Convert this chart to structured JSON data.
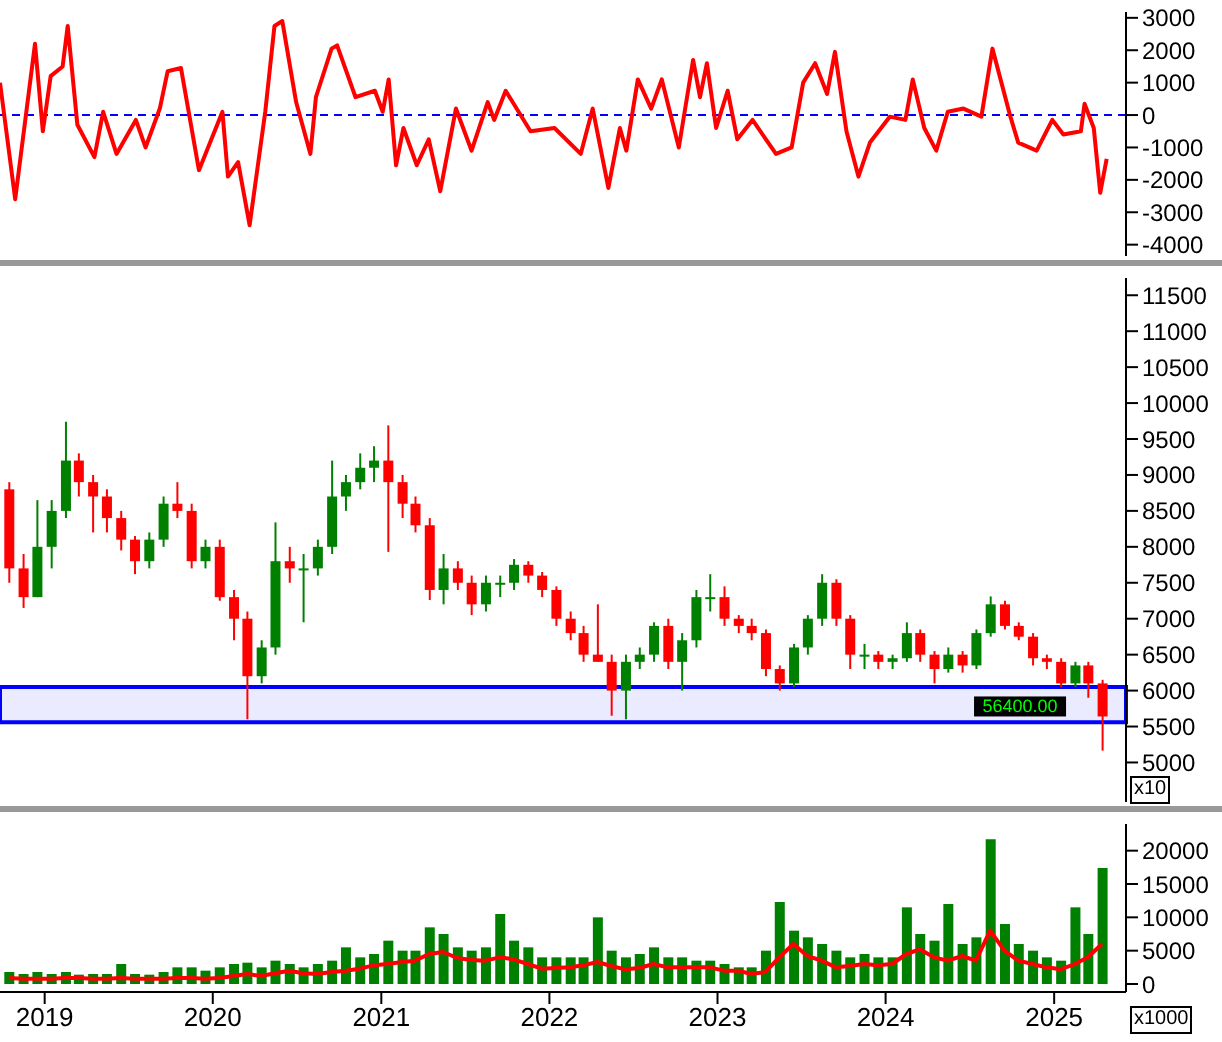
{
  "chart_data": [
    {
      "type": "line",
      "x": [
        "2018-09-26",
        "2018-10-29",
        "2018-12-11",
        "2018-12-28",
        "2019-01-14",
        "2019-02-09",
        "2019-02-20",
        "2019-03-13",
        "2019-04-19",
        "2019-05-08",
        "2019-06-06",
        "2019-07-18",
        "2019-08-08",
        "2019-09-08",
        "2019-09-25",
        "2019-10-24",
        "2019-12-02",
        "2020-01-22",
        "2020-02-03",
        "2020-02-25",
        "2020-03-21",
        "2020-04-24",
        "2020-05-14",
        "2020-05-31",
        "2020-06-30",
        "2020-07-31",
        "2020-08-12",
        "2020-09-15",
        "2020-09-27",
        "2020-11-06",
        "2020-12-18",
        "2021-01-04",
        "2021-01-17",
        "2021-02-02",
        "2021-02-18",
        "2021-03-19",
        "2021-04-14",
        "2021-05-09",
        "2021-06-12",
        "2021-07-16",
        "2021-08-20",
        "2021-09-03",
        "2021-09-28",
        "2021-11-21",
        "2022-01-12",
        "2022-03-10",
        "2022-04-05",
        "2022-05-09",
        "2022-06-03",
        "2022-06-17",
        "2022-07-12",
        "2022-08-10",
        "2022-09-02",
        "2022-10-09",
        "2022-11-09",
        "2022-11-24",
        "2022-12-09",
        "2022-12-29",
        "2023-01-23",
        "2023-02-13",
        "2023-03-18",
        "2023-05-08",
        "2023-06-11",
        "2023-07-06",
        "2023-08-01",
        "2023-08-27",
        "2023-09-13",
        "2023-10-08",
        "2023-11-03",
        "2023-11-28",
        "2024-01-10",
        "2024-02-13",
        "2024-02-29",
        "2024-03-25",
        "2024-04-20",
        "2024-05-15",
        "2024-06-18",
        "2024-07-27",
        "2024-08-20",
        "2024-09-28",
        "2024-10-15",
        "2024-11-24",
        "2024-12-28",
        "2025-01-21",
        "2025-02-28",
        "2025-03-08",
        "2025-03-28",
        "2025-04-11",
        "2025-04-25"
      ],
      "series": [
        {
          "color": "#ff0000",
          "values": [
            1000,
            -2600,
            2200,
            -500,
            1200,
            1500,
            2750,
            -300,
            -1300,
            100,
            -1200,
            -150,
            -1000,
            200,
            1350,
            1450,
            -1700,
            100,
            -1900,
            -1450,
            -3400,
            100,
            2750,
            2900,
            400,
            -1200,
            550,
            2050,
            2150,
            550,
            750,
            100,
            1100,
            -1550,
            -400,
            -1550,
            -750,
            -2350,
            200,
            -1100,
            400,
            -150,
            750,
            -500,
            -400,
            -1200,
            200,
            -2250,
            -400,
            -1100,
            1100,
            200,
            1100,
            -1000,
            1700,
            550,
            1600,
            -400,
            750,
            -750,
            -150,
            -1200,
            -1000,
            1000,
            1600,
            650,
            1950,
            -500,
            -1900,
            -850,
            -50,
            -150,
            1100,
            -400,
            -1100,
            100,
            200,
            -50,
            2050,
            -50,
            -850,
            -1100,
            -150,
            -600,
            -500,
            350,
            -400,
            -2400,
            -1350
          ]
        }
      ],
      "xlim": [
        "2018-09-26",
        "2025-06-06"
      ],
      "ylim": [
        -4350,
        3180
      ],
      "yticks": [
        -4000,
        -3000,
        -2000,
        -1000,
        0,
        1000,
        2000,
        3000
      ],
      "ref_lines": [
        {
          "axis": "y",
          "value": 0,
          "color": "#0000ff",
          "line_style": "dashed"
        }
      ],
      "tick_labels": "y"
    },
    {
      "type": "candlestick",
      "x": [
        "2018-10-15",
        "2018-11-15",
        "2018-12-15",
        "2019-01-15",
        "2019-02-15",
        "2019-03-15",
        "2019-04-15",
        "2019-05-15",
        "2019-06-15",
        "2019-07-15",
        "2019-08-15",
        "2019-09-15",
        "2019-10-15",
        "2019-11-15",
        "2019-12-15",
        "2020-01-15",
        "2020-02-15",
        "2020-03-15",
        "2020-04-15",
        "2020-05-15",
        "2020-06-15",
        "2020-07-15",
        "2020-08-15",
        "2020-09-15",
        "2020-10-15",
        "2020-11-15",
        "2020-12-15",
        "2021-01-15",
        "2021-02-15",
        "2021-03-15",
        "2021-04-15",
        "2021-05-15",
        "2021-06-15",
        "2021-07-15",
        "2021-08-15",
        "2021-09-15",
        "2021-10-15",
        "2021-11-15",
        "2021-12-15",
        "2022-01-15",
        "2022-02-15",
        "2022-03-15",
        "2022-04-15",
        "2022-05-15",
        "2022-06-15",
        "2022-07-15",
        "2022-08-15",
        "2022-09-15",
        "2022-10-15",
        "2022-11-15",
        "2022-12-15",
        "2023-01-15",
        "2023-02-15",
        "2023-03-15",
        "2023-04-15",
        "2023-05-15",
        "2023-06-15",
        "2023-07-15",
        "2023-08-15",
        "2023-09-15",
        "2023-10-15",
        "2023-11-15",
        "2023-12-15",
        "2024-01-15",
        "2024-02-15",
        "2024-03-15",
        "2024-04-15",
        "2024-05-15",
        "2024-06-15",
        "2024-07-15",
        "2024-08-15",
        "2024-09-15",
        "2024-10-15",
        "2024-11-15",
        "2024-12-15",
        "2025-01-15",
        "2025-02-15",
        "2025-03-15",
        "2025-04-15"
      ],
      "ohlc": [
        [
          8800,
          8900,
          7500,
          7700
        ],
        [
          7700,
          7900,
          7150,
          7300
        ],
        [
          7300,
          8650,
          7300,
          8000
        ],
        [
          8000,
          8650,
          7700,
          8500
        ],
        [
          8500,
          9740,
          8400,
          9200
        ],
        [
          9200,
          9300,
          8700,
          8900
        ],
        [
          8900,
          9000,
          8200,
          8700
        ],
        [
          8700,
          8800,
          8200,
          8400
        ],
        [
          8400,
          8500,
          7950,
          8100
        ],
        [
          8100,
          8150,
          7620,
          7800
        ],
        [
          7800,
          8200,
          7700,
          8100
        ],
        [
          8100,
          8700,
          8000,
          8600
        ],
        [
          8600,
          8900,
          8400,
          8500
        ],
        [
          8500,
          8600,
          7700,
          7800
        ],
        [
          7800,
          8100,
          7700,
          8000
        ],
        [
          8000,
          8100,
          7250,
          7300
        ],
        [
          7300,
          7400,
          6700,
          7000
        ],
        [
          7000,
          7100,
          5600,
          6200
        ],
        [
          6200,
          6700,
          6100,
          6600
        ],
        [
          6600,
          8340,
          6500,
          7800
        ],
        [
          7800,
          8000,
          7500,
          7700
        ],
        [
          7700,
          7900,
          6950,
          7700
        ],
        [
          7700,
          8100,
          7600,
          8000
        ],
        [
          8000,
          9200,
          7900,
          8700
        ],
        [
          8700,
          9000,
          8500,
          8900
        ],
        [
          8900,
          9300,
          8800,
          9100
        ],
        [
          9100,
          9400,
          8900,
          9200
        ],
        [
          9200,
          9690,
          7930,
          8900
        ],
        [
          8900,
          9000,
          8400,
          8600
        ],
        [
          8600,
          8700,
          8200,
          8300
        ],
        [
          8300,
          8400,
          7260,
          7400
        ],
        [
          7400,
          7900,
          7200,
          7700
        ],
        [
          7700,
          7800,
          7400,
          7500
        ],
        [
          7500,
          7600,
          7050,
          7200
        ],
        [
          7200,
          7600,
          7100,
          7500
        ],
        [
          7500,
          7600,
          7300,
          7500
        ],
        [
          7500,
          7830,
          7400,
          7750
        ],
        [
          7750,
          7800,
          7500,
          7600
        ],
        [
          7600,
          7650,
          7300,
          7400
        ],
        [
          7400,
          7450,
          6900,
          7000
        ],
        [
          7000,
          7100,
          6700,
          6800
        ],
        [
          6800,
          6900,
          6400,
          6500
        ],
        [
          6500,
          7200,
          6400,
          6400
        ],
        [
          6400,
          6500,
          5650,
          6000
        ],
        [
          6000,
          6500,
          5600,
          6400
        ],
        [
          6400,
          6600,
          6300,
          6500
        ],
        [
          6500,
          6950,
          6400,
          6900
        ],
        [
          6900,
          7000,
          6300,
          6400
        ],
        [
          6400,
          6800,
          6000,
          6700
        ],
        [
          6700,
          7400,
          6600,
          7300
        ],
        [
          7300,
          7620,
          7100,
          7300
        ],
        [
          7300,
          7450,
          6900,
          7000
        ],
        [
          7000,
          7050,
          6800,
          6900
        ],
        [
          6900,
          7000,
          6700,
          6800
        ],
        [
          6800,
          6850,
          6200,
          6300
        ],
        [
          6300,
          6350,
          6000,
          6100
        ],
        [
          6100,
          6650,
          6050,
          6600
        ],
        [
          6600,
          7050,
          6500,
          7000
        ],
        [
          7000,
          7620,
          6900,
          7500
        ],
        [
          7500,
          7550,
          6900,
          7000
        ],
        [
          7000,
          7050,
          6300,
          6500
        ],
        [
          6500,
          6650,
          6300,
          6500
        ],
        [
          6500,
          6550,
          6300,
          6400
        ],
        [
          6400,
          6500,
          6300,
          6450
        ],
        [
          6450,
          6950,
          6400,
          6800
        ],
        [
          6800,
          6850,
          6400,
          6500
        ],
        [
          6500,
          6550,
          6100,
          6300
        ],
        [
          6300,
          6600,
          6250,
          6500
        ],
        [
          6500,
          6550,
          6250,
          6350
        ],
        [
          6350,
          6850,
          6300,
          6800
        ],
        [
          6800,
          7310,
          6750,
          7200
        ],
        [
          7200,
          7250,
          6850,
          6900
        ],
        [
          6900,
          6950,
          6700,
          6750
        ],
        [
          6750,
          6800,
          6350,
          6450
        ],
        [
          6450,
          6500,
          6300,
          6400
        ],
        [
          6400,
          6450,
          6050,
          6100
        ],
        [
          6100,
          6400,
          6050,
          6350
        ],
        [
          6350,
          6400,
          5900,
          6100
        ],
        [
          6100,
          6150,
          5165,
          5640
        ]
      ],
      "colors": [
        "#ff0000",
        "#ff0000",
        "#008000",
        "#008000",
        "#008000",
        "#ff0000",
        "#ff0000",
        "#ff0000",
        "#ff0000",
        "#ff0000",
        "#008000",
        "#008000",
        "#ff0000",
        "#ff0000",
        "#008000",
        "#ff0000",
        "#ff0000",
        "#ff0000",
        "#008000",
        "#008000",
        "#ff0000",
        "#008000",
        "#008000",
        "#008000",
        "#008000",
        "#008000",
        "#008000",
        "#ff0000",
        "#ff0000",
        "#ff0000",
        "#ff0000",
        "#008000",
        "#ff0000",
        "#ff0000",
        "#008000",
        "#008000",
        "#008000",
        "#ff0000",
        "#ff0000",
        "#ff0000",
        "#ff0000",
        "#ff0000",
        "#ff0000",
        "#ff0000",
        "#008000",
        "#008000",
        "#008000",
        "#ff0000",
        "#008000",
        "#008000",
        "#008000",
        "#ff0000",
        "#ff0000",
        "#ff0000",
        "#ff0000",
        "#ff0000",
        "#008000",
        "#008000",
        "#008000",
        "#ff0000",
        "#ff0000",
        "#008000",
        "#ff0000",
        "#008000",
        "#008000",
        "#ff0000",
        "#ff0000",
        "#008000",
        "#ff0000",
        "#008000",
        "#008000",
        "#ff0000",
        "#ff0000",
        "#ff0000",
        "#ff0000",
        "#ff0000",
        "#008000",
        "#ff0000",
        "#ff0000"
      ],
      "xlim": [
        "2018-09-26",
        "2025-06-06"
      ],
      "ylim": [
        4450,
        11740
      ],
      "yticks": [
        5000,
        5500,
        6000,
        6500,
        7000,
        7500,
        8000,
        8500,
        9000,
        9500,
        10000,
        10500,
        11000,
        11500
      ],
      "bands": [
        {
          "axis": "y",
          "from": 5560,
          "to": 6050,
          "color": "#0000ff"
        }
      ],
      "annotations": [
        {
          "text": "56400.00",
          "x": "2025-04-15",
          "y": 5640
        },
        "x10"
      ],
      "tick_labels": "y"
    },
    {
      "type": "bar",
      "x": [
        "2018-10-15",
        "2018-11-15",
        "2018-12-15",
        "2019-01-15",
        "2019-02-15",
        "2019-03-15",
        "2019-04-15",
        "2019-05-15",
        "2019-06-15",
        "2019-07-15",
        "2019-08-15",
        "2019-09-15",
        "2019-10-15",
        "2019-11-15",
        "2019-12-15",
        "2020-01-15",
        "2020-02-15",
        "2020-03-15",
        "2020-04-15",
        "2020-05-15",
        "2020-06-15",
        "2020-07-15",
        "2020-08-15",
        "2020-09-15",
        "2020-10-15",
        "2020-11-15",
        "2020-12-15",
        "2021-01-15",
        "2021-02-15",
        "2021-03-15",
        "2021-04-15",
        "2021-05-15",
        "2021-06-15",
        "2021-07-15",
        "2021-08-15",
        "2021-09-15",
        "2021-10-15",
        "2021-11-15",
        "2021-12-15",
        "2022-01-15",
        "2022-02-15",
        "2022-03-15",
        "2022-04-15",
        "2022-05-15",
        "2022-06-15",
        "2022-07-15",
        "2022-08-15",
        "2022-09-15",
        "2022-10-15",
        "2022-11-15",
        "2022-12-15",
        "2023-01-15",
        "2023-02-15",
        "2023-03-15",
        "2023-04-15",
        "2023-05-15",
        "2023-06-15",
        "2023-07-15",
        "2023-08-15",
        "2023-09-15",
        "2023-10-15",
        "2023-11-15",
        "2023-12-15",
        "2024-01-15",
        "2024-02-15",
        "2024-03-15",
        "2024-04-15",
        "2024-05-15",
        "2024-06-15",
        "2024-07-15",
        "2024-08-15",
        "2024-09-15",
        "2024-10-15",
        "2024-11-15",
        "2024-12-15",
        "2025-01-15",
        "2025-02-15",
        "2025-03-15",
        "2025-04-15"
      ],
      "series": [
        {
          "type": "bar",
          "color": "#008000",
          "values": [
            1800,
            1500,
            1800,
            1500,
            1800,
            1400,
            1500,
            1500,
            3000,
            1500,
            1400,
            1800,
            2500,
            2500,
            2000,
            2500,
            3000,
            3200,
            2500,
            3500,
            3000,
            2500,
            3000,
            3500,
            5500,
            4000,
            4500,
            6500,
            5000,
            5000,
            8500,
            7500,
            5500,
            5000,
            5500,
            10500,
            6500,
            5500,
            4000,
            4000,
            4000,
            4000,
            10000,
            5000,
            4000,
            4500,
            5500,
            4000,
            4000,
            3500,
            3500,
            3000,
            2500,
            2500,
            5000,
            12300,
            8000,
            7000,
            6000,
            5000,
            4000,
            4500,
            4000,
            4000,
            11500,
            7500,
            6500,
            12000,
            6000,
            7000,
            21700,
            9000,
            6000,
            5000,
            4000,
            3500,
            11500,
            7500,
            17400
          ]
        },
        {
          "type": "line",
          "color": "#ff0000",
          "values": [
            900,
            800,
            800,
            800,
            900,
            900,
            800,
            800,
            900,
            800,
            800,
            800,
            900,
            900,
            800,
            900,
            1200,
            1500,
            1200,
            1600,
            2000,
            1600,
            1500,
            1800,
            2000,
            2300,
            2800,
            3000,
            3300,
            3500,
            4500,
            4800,
            3900,
            3600,
            3500,
            4000,
            3700,
            3000,
            2300,
            2400,
            2500,
            2800,
            3300,
            2700,
            2200,
            2400,
            3000,
            2500,
            2500,
            2500,
            2500,
            2000,
            2000,
            1500,
            1800,
            4000,
            6000,
            4200,
            3500,
            2500,
            2700,
            3000,
            2800,
            3000,
            4500,
            5200,
            4000,
            3500,
            4200,
            3500,
            8000,
            5000,
            3500,
            3000,
            2500,
            2200,
            3000,
            4000,
            6000
          ]
        }
      ],
      "xlim": [
        "2018-09-26",
        "2025-06-06"
      ],
      "ylim": [
        -1200,
        24000
      ],
      "yticks": [
        0,
        5000,
        10000,
        15000,
        20000
      ],
      "xticks": [
        {
          "value": "2019-01-01",
          "label": "2019"
        },
        {
          "value": "2020-01-01",
          "label": "2020"
        },
        {
          "value": "2021-01-01",
          "label": "2021"
        },
        {
          "value": "2022-01-01",
          "label": "2022"
        },
        {
          "value": "2023-01-01",
          "label": "2023"
        },
        {
          "value": "2024-01-01",
          "label": "2024"
        },
        {
          "value": "2025-01-01",
          "label": "2025"
        }
      ],
      "annotations": [
        "x1000"
      ]
    }
  ]
}
